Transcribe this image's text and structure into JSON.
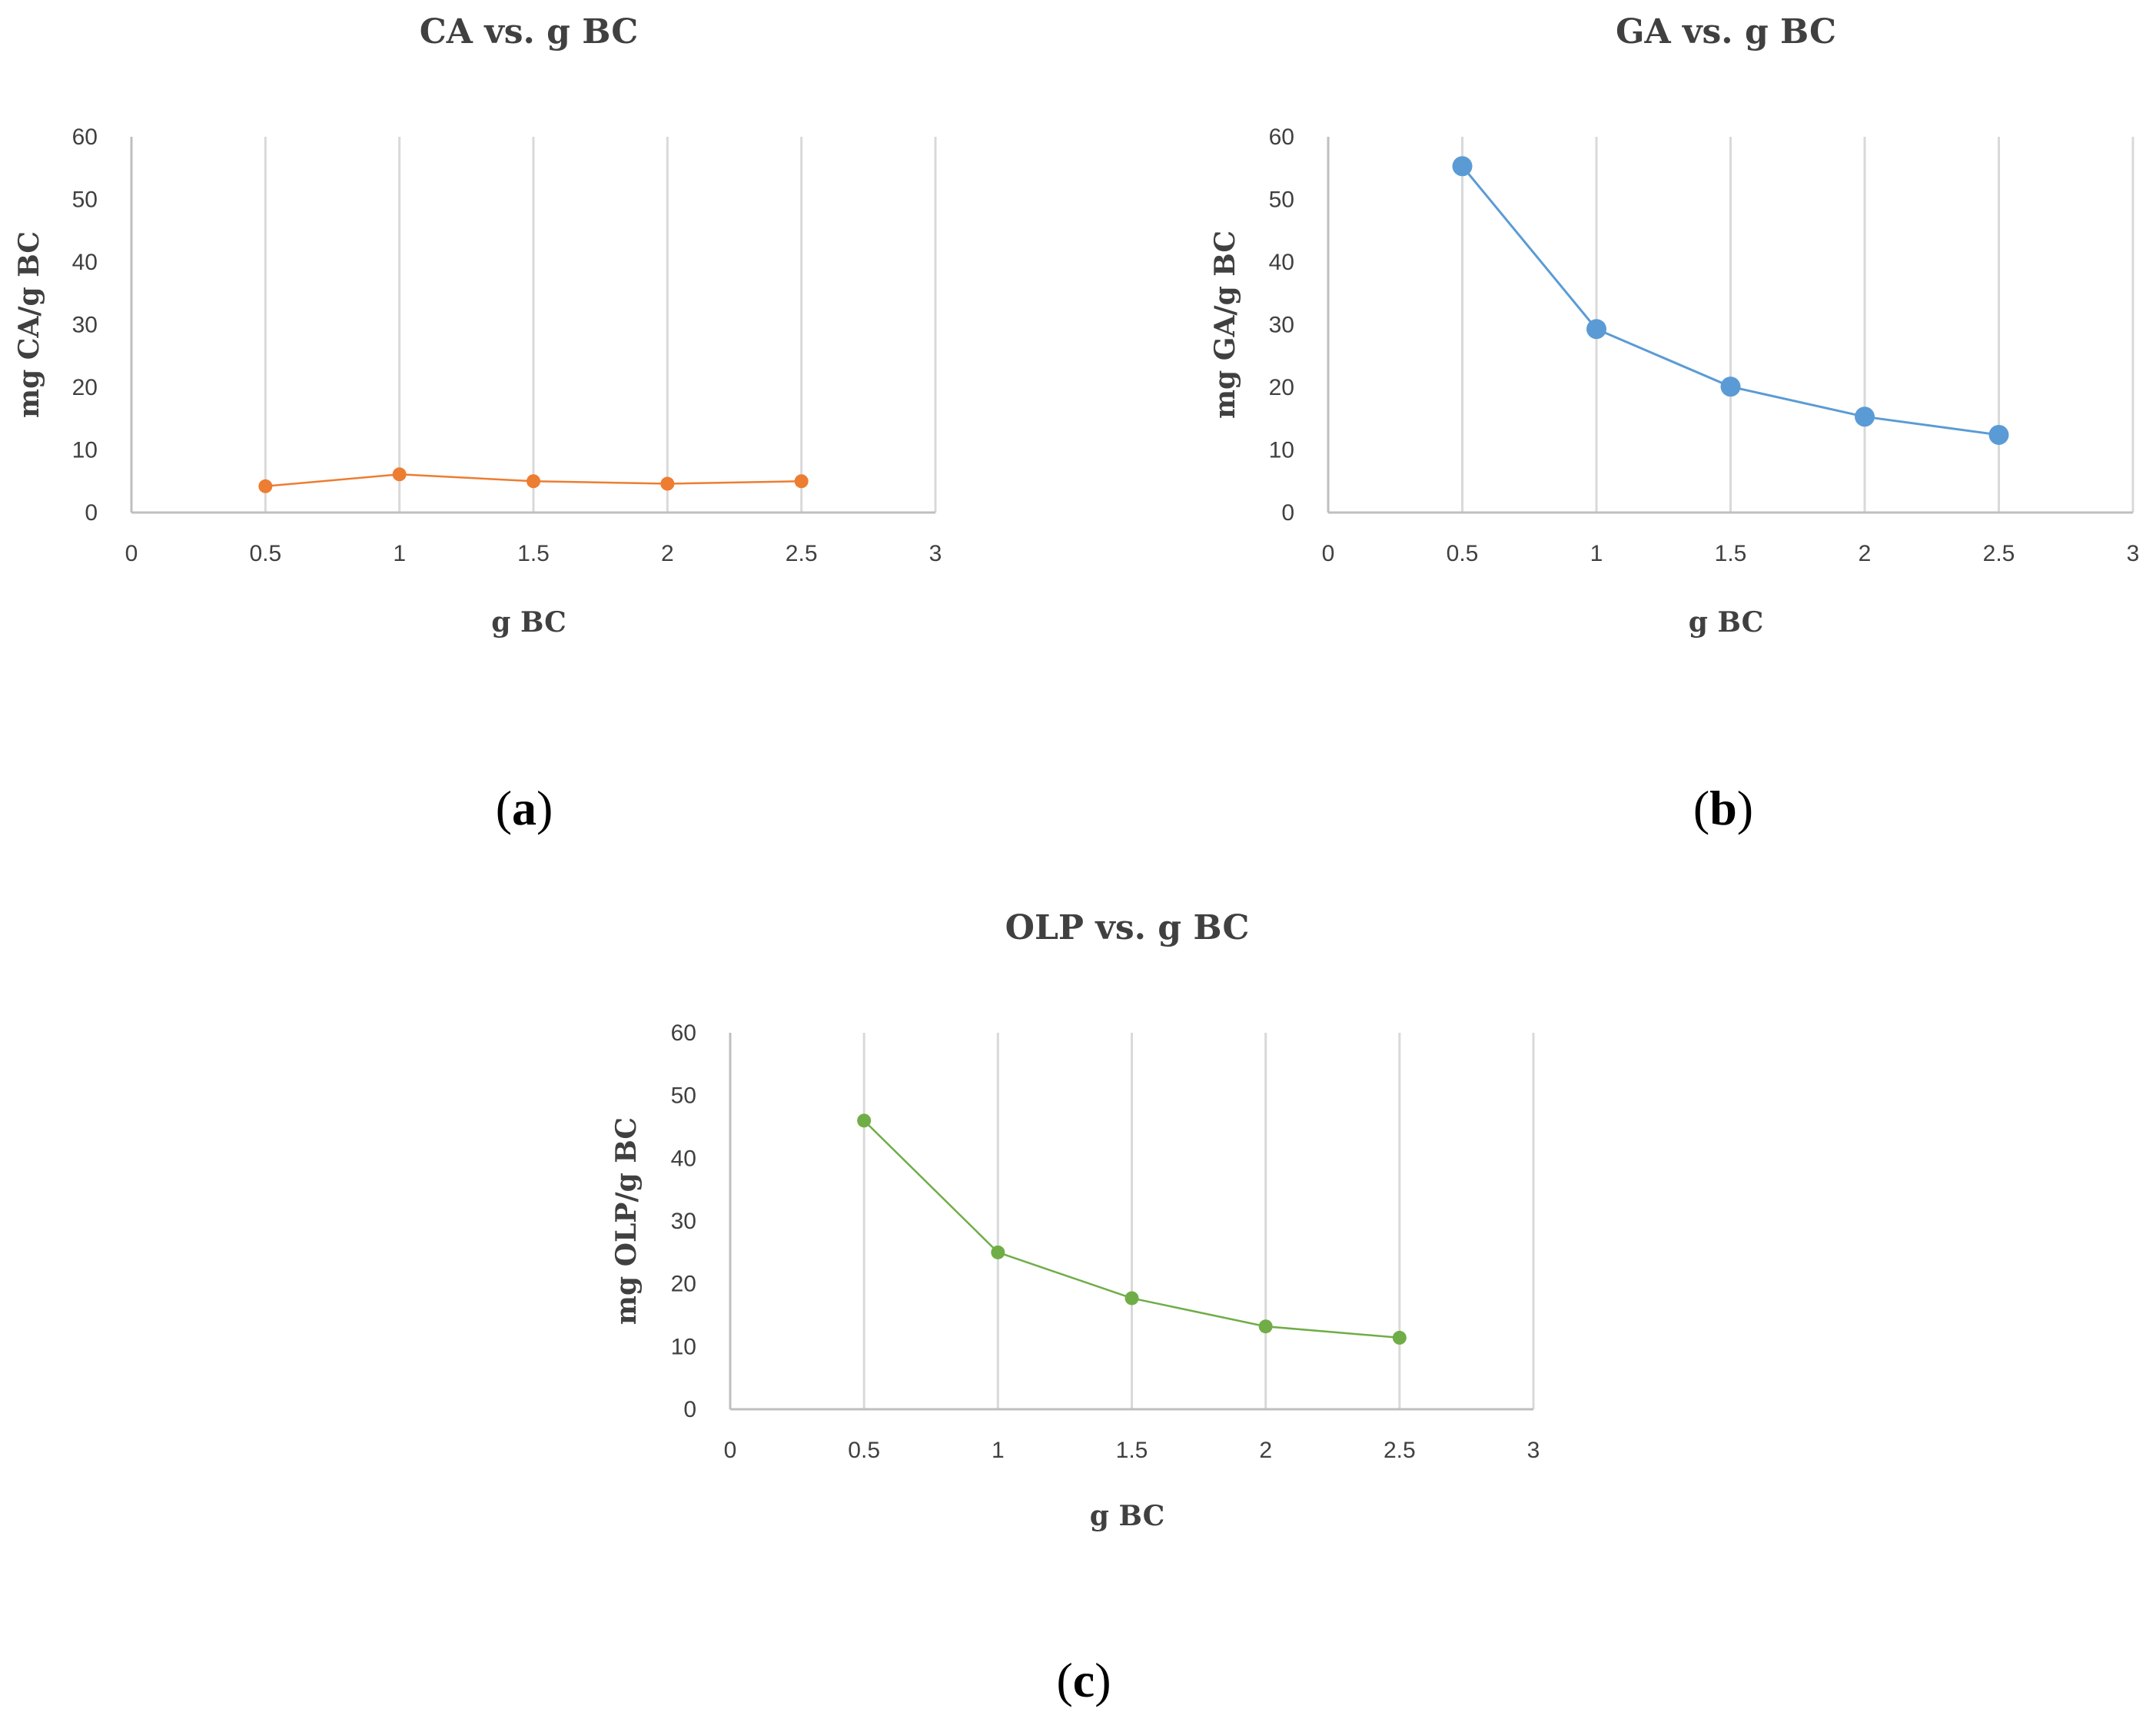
{
  "chart_data": [
    {
      "type": "line",
      "panel": "a",
      "title": "CA vs. g BC",
      "xlabel": "g BC",
      "ylabel": "mg CA/g BC",
      "xlim": [
        0,
        3
      ],
      "ylim": [
        0,
        60
      ],
      "xticks": [
        "0",
        "0.5",
        "1",
        "1.5",
        "2",
        "2.5",
        "3"
      ],
      "yticks": [
        "0",
        "10",
        "20",
        "30",
        "40",
        "50",
        "60"
      ],
      "grid": "vertical",
      "color": "#ED7D31",
      "series": [
        {
          "name": "CA",
          "x": [
            0.5,
            1,
            1.5,
            2,
            2.5
          ],
          "values": [
            4.2,
            6.1,
            5.0,
            4.6,
            5.0
          ]
        }
      ]
    },
    {
      "type": "line",
      "panel": "b",
      "title": "GA vs. g BC",
      "xlabel": "g BC",
      "ylabel": "mg GA/g BC",
      "xlim": [
        0,
        3
      ],
      "ylim": [
        0,
        60
      ],
      "xticks": [
        "0",
        "0.5",
        "1",
        "1.5",
        "2",
        "2.5",
        "3"
      ],
      "yticks": [
        "0",
        "10",
        "20",
        "30",
        "40",
        "50",
        "60"
      ],
      "grid": "vertical",
      "color": "#5B9BD5",
      "series": [
        {
          "name": "GA",
          "x": [
            0.5,
            1,
            1.5,
            2,
            2.5
          ],
          "values": [
            55.3,
            29.3,
            20.1,
            15.3,
            12.4
          ]
        }
      ]
    },
    {
      "type": "line",
      "panel": "c",
      "title": "OLP vs. g BC",
      "xlabel": "g BC",
      "ylabel": "mg OLP/g BC",
      "xlim": [
        0,
        3
      ],
      "ylim": [
        0,
        60
      ],
      "xticks": [
        "0",
        "0.5",
        "1",
        "1.5",
        "2",
        "2.5",
        "3"
      ],
      "yticks": [
        "0",
        "10",
        "20",
        "30",
        "40",
        "50",
        "60"
      ],
      "grid": "vertical",
      "color": "#70AD47",
      "series": [
        {
          "name": "OLP",
          "x": [
            0.5,
            1,
            1.5,
            2,
            2.5
          ],
          "values": [
            46.0,
            25.0,
            17.7,
            13.2,
            11.4
          ]
        }
      ]
    }
  ],
  "captions": [
    {
      "open": "(",
      "letter": "a",
      "close": ")"
    },
    {
      "open": "(",
      "letter": "b",
      "close": ")"
    },
    {
      "open": "(",
      "letter": "c",
      "close": ")"
    }
  ]
}
